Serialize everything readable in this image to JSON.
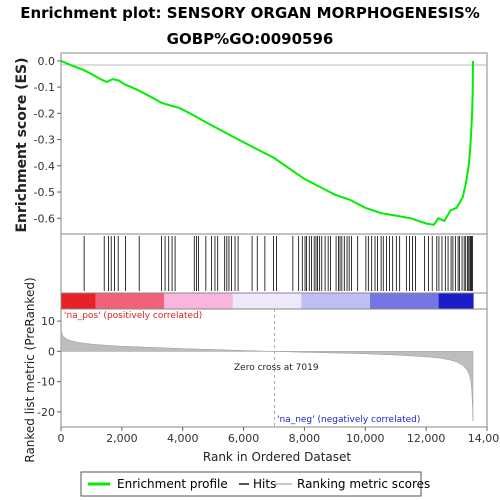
{
  "chart_data": {
    "type": "line",
    "title_line1": "Enrichment plot: SENSORY ORGAN MORPHOGENESIS%",
    "title_line2": "GOBP%GO:0090596",
    "x_axis_label": "Rank in Ordered Dataset",
    "xlim": [
      0,
      14000
    ],
    "x_ticks": [
      "0",
      "2,000",
      "4,000",
      "6,000",
      "8,000",
      "10,000",
      "12,000",
      "14,000"
    ],
    "top_panel": {
      "ylabel": "Enrichment score (ES)",
      "ylim": [
        -0.66,
        0.03
      ],
      "y_ticks": [
        "0.0",
        "-0.1",
        "-0.2",
        "-0.3",
        "-0.4",
        "-0.5",
        "-0.6"
      ],
      "series": [
        {
          "name": "Enrichment profile",
          "color": "#00ee00",
          "x": [
            0,
            400,
            750,
            1000,
            1300,
            1500,
            1700,
            1900,
            2100,
            2500,
            3000,
            3300,
            3600,
            3900,
            4400,
            4700,
            5100,
            5500,
            6000,
            6500,
            7000,
            7500,
            8000,
            8500,
            9000,
            9500,
            10000,
            10500,
            11000,
            11500,
            12000,
            12250,
            12400,
            12600,
            12800,
            13000,
            13200,
            13300,
            13400,
            13450,
            13480,
            13510,
            13530,
            13540
          ],
          "values": [
            0.0,
            -0.02,
            -0.035,
            -0.05,
            -0.07,
            -0.08,
            -0.07,
            -0.075,
            -0.09,
            -0.11,
            -0.14,
            -0.16,
            -0.17,
            -0.18,
            -0.21,
            -0.23,
            -0.255,
            -0.28,
            -0.31,
            -0.34,
            -0.37,
            -0.41,
            -0.45,
            -0.48,
            -0.51,
            -0.53,
            -0.56,
            -0.58,
            -0.59,
            -0.6,
            -0.62,
            -0.625,
            -0.6,
            -0.61,
            -0.57,
            -0.56,
            -0.52,
            -0.47,
            -0.4,
            -0.33,
            -0.27,
            -0.2,
            -0.12,
            0.0
          ]
        }
      ]
    },
    "hits": {
      "name": "Hits",
      "positions": [
        760,
        1420,
        1560,
        1650,
        1760,
        1880,
        2120,
        2570,
        3300,
        3420,
        3540,
        3650,
        3750,
        4380,
        4450,
        4520,
        4760,
        4950,
        5060,
        5150,
        5380,
        5450,
        5520,
        5600,
        5720,
        5820,
        6280,
        6450,
        6700,
        6980,
        7080,
        7620,
        7810,
        7930,
        8020,
        8070,
        8160,
        8230,
        8320,
        8380,
        8430,
        8500,
        8570,
        8680,
        8780,
        8860,
        9040,
        9120,
        9170,
        9230,
        9310,
        9400,
        9470,
        9550,
        9750,
        10020,
        10100,
        10210,
        10320,
        10400,
        10520,
        10590,
        10700,
        10800,
        10900,
        11020,
        11130,
        11350,
        11450,
        11550,
        11650,
        11950,
        12080,
        12200,
        12350,
        12420,
        12520,
        12630,
        12720,
        12820,
        12880,
        12960,
        13050,
        13100,
        13180,
        13250,
        13300,
        13360,
        13400,
        13440,
        13470,
        13500,
        13520
      ]
    },
    "ranked_list": {
      "ylabel": "Ranked list metric (PreRanked)",
      "ylim": [
        -25,
        14
      ],
      "y_ticks": [
        "10",
        "0",
        "-10",
        "-20"
      ],
      "zero_cross_label": "Zero cross at 7019",
      "zero_cross": 7019,
      "pos_label": "'na_pos' (positively correlated)",
      "neg_label": "'na_neg' (negatively correlated)",
      "x": [
        0,
        20,
        60,
        150,
        300,
        600,
        1000,
        1500,
        2000,
        3000,
        4000,
        5000,
        6000,
        7019,
        8000,
        9000,
        10000,
        11000,
        11500,
        12000,
        12500,
        12800,
        13000,
        13200,
        13350,
        13420,
        13470,
        13500,
        13520,
        13540
      ],
      "values": [
        7.5,
        6.4,
        5.2,
        4.3,
        3.6,
        2.9,
        2.4,
        2.0,
        1.7,
        1.3,
        0.9,
        0.6,
        0.3,
        0.0,
        -0.3,
        -0.55,
        -0.8,
        -1.2,
        -1.5,
        -1.8,
        -2.3,
        -2.9,
        -3.5,
        -4.6,
        -6.2,
        -7.8,
        -10.0,
        -13.0,
        -17.0,
        -23.0
      ]
    },
    "legend": [
      {
        "label": "Enrichment profile",
        "color": "#00ee00"
      },
      {
        "label": "Hits",
        "color": "#555555"
      },
      {
        "label": "Ranking metric scores",
        "color": "#c8c8c8"
      }
    ],
    "colors": {
      "profile": "#00ee00",
      "hits": "#000000",
      "metric_fill": "#bdbdbd",
      "pos_text": "#dd2222",
      "neg_text": "#2222cc"
    }
  }
}
